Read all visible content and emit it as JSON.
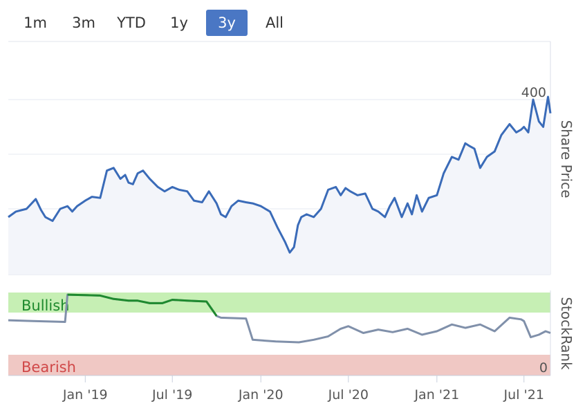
{
  "range_selector": {
    "buttons": [
      {
        "label": "1m",
        "active": false
      },
      {
        "label": "3m",
        "active": false
      },
      {
        "label": "YTD",
        "active": false
      },
      {
        "label": "1y",
        "active": false
      },
      {
        "label": "3y",
        "active": true
      },
      {
        "label": "All",
        "active": false
      }
    ]
  },
  "colors": {
    "price_line": "#3a6bb8",
    "price_fill": "#f3f5fa",
    "stockrank_line": "#8090aa",
    "stockrank_highlight": "#1e8a2e",
    "bullish_band": "#c6efb4",
    "bearish_band": "#f0c8c4",
    "bullish_text": "#1e8a2e",
    "bearish_text": "#d04848",
    "active_button": "#4a77c4"
  },
  "chart_data": [
    {
      "type": "line",
      "ylabel": "Share Price",
      "yticks": [
        100,
        200,
        300,
        400
      ],
      "ylim": [
        80,
        410
      ],
      "xlim": [
        "2018-07-25",
        "2021-08-25"
      ],
      "grid": true,
      "series": [
        {
          "x": [
            "2018-07-25",
            "2018-08-10",
            "2018-09-01",
            "2018-09-20",
            "2018-10-01",
            "2018-10-10",
            "2018-10-25",
            "2018-11-10",
            "2018-11-25",
            "2018-12-05",
            "2018-12-15",
            "2019-01-01",
            "2019-01-15",
            "2019-02-01",
            "2019-02-15",
            "2019-03-01",
            "2019-03-15",
            "2019-03-25",
            "2019-04-01",
            "2019-04-10",
            "2019-04-20",
            "2019-05-01",
            "2019-05-15",
            "2019-06-01",
            "2019-06-15",
            "2019-07-01",
            "2019-07-15",
            "2019-08-01",
            "2019-08-15",
            "2019-09-01",
            "2019-09-15",
            "2019-10-01",
            "2019-10-10",
            "2019-10-20",
            "2019-11-01",
            "2019-11-15",
            "2019-12-01",
            "2019-12-15",
            "2020-01-01",
            "2020-01-20",
            "2020-02-05",
            "2020-02-20",
            "2020-03-01",
            "2020-03-10",
            "2020-03-18",
            "2020-03-25",
            "2020-04-05",
            "2020-04-20",
            "2020-05-05",
            "2020-05-20",
            "2020-06-05",
            "2020-06-15",
            "2020-06-25",
            "2020-07-05",
            "2020-07-20",
            "2020-08-05",
            "2020-08-20",
            "2020-09-01",
            "2020-09-15",
            "2020-09-25",
            "2020-10-05",
            "2020-10-20",
            "2020-11-01",
            "2020-11-10",
            "2020-11-20",
            "2020-12-01",
            "2020-12-15",
            "2021-01-01",
            "2021-01-15",
            "2021-02-01",
            "2021-02-15",
            "2021-03-01",
            "2021-03-10",
            "2021-03-20",
            "2021-04-01",
            "2021-04-15",
            "2021-05-01",
            "2021-05-15",
            "2021-06-01",
            "2021-06-15",
            "2021-06-25",
            "2021-07-01",
            "2021-07-10",
            "2021-07-20",
            "2021-08-01",
            "2021-08-10",
            "2021-08-20",
            "2021-08-25"
          ],
          "y": [
            185,
            195,
            200,
            218,
            198,
            185,
            178,
            200,
            205,
            195,
            205,
            215,
            222,
            220,
            270,
            275,
            255,
            262,
            248,
            245,
            265,
            270,
            255,
            240,
            232,
            240,
            235,
            232,
            215,
            212,
            232,
            210,
            190,
            185,
            205,
            215,
            212,
            210,
            205,
            195,
            165,
            140,
            120,
            130,
            170,
            185,
            190,
            185,
            200,
            235,
            240,
            225,
            238,
            232,
            225,
            228,
            200,
            195,
            185,
            205,
            220,
            185,
            210,
            190,
            225,
            195,
            220,
            225,
            265,
            295,
            290,
            320,
            315,
            310,
            275,
            295,
            305,
            335,
            355,
            340,
            345,
            350,
            340,
            400,
            360,
            350,
            405,
            375
          ]
        }
      ]
    },
    {
      "type": "line",
      "ylabel": "StockRank",
      "yticks": [
        0
      ],
      "ylim": [
        0,
        100
      ],
      "bands": [
        {
          "label": "Bullish",
          "from": 80,
          "to": 100
        },
        {
          "label": "Bearish",
          "from": 0,
          "to": 20
        }
      ],
      "series": [
        {
          "x": [
            "2018-07-25",
            "2018-09-15",
            "2018-11-20",
            "2018-11-25",
            "2019-02-01",
            "2019-03-01",
            "2019-04-01",
            "2019-04-20",
            "2019-05-15",
            "2019-06-10",
            "2019-07-01",
            "2019-08-01",
            "2019-09-10",
            "2019-10-01",
            "2019-10-10",
            "2019-12-01",
            "2019-12-15",
            "2020-02-01",
            "2020-03-20",
            "2020-04-20",
            "2020-05-20",
            "2020-06-15",
            "2020-07-01",
            "2020-08-01",
            "2020-09-01",
            "2020-10-01",
            "2020-11-01",
            "2020-12-01",
            "2021-01-01",
            "2021-02-01",
            "2021-03-01",
            "2021-04-01",
            "2021-05-01",
            "2021-06-01",
            "2021-06-25",
            "2021-07-01",
            "2021-07-15",
            "2021-08-01",
            "2021-08-15",
            "2021-08-25"
          ],
          "y": [
            65,
            64,
            63,
            95,
            94,
            90,
            88,
            88,
            85,
            85,
            89,
            88,
            87,
            70,
            68,
            67,
            42,
            40,
            39,
            42,
            46,
            55,
            58,
            50,
            54,
            51,
            55,
            48,
            52,
            60,
            56,
            60,
            52,
            68,
            66,
            64,
            45,
            48,
            52,
            50
          ]
        }
      ]
    }
  ],
  "x_axis": {
    "ticks": [
      {
        "label": "Jan '19",
        "date": "2019-01-01"
      },
      {
        "label": "Jul '19",
        "date": "2019-07-01"
      },
      {
        "label": "Jan '20",
        "date": "2020-01-01"
      },
      {
        "label": "Jul '20",
        "date": "2020-07-01"
      },
      {
        "label": "Jan '21",
        "date": "2021-01-01"
      },
      {
        "label": "Jul '21",
        "date": "2021-07-01"
      }
    ]
  }
}
